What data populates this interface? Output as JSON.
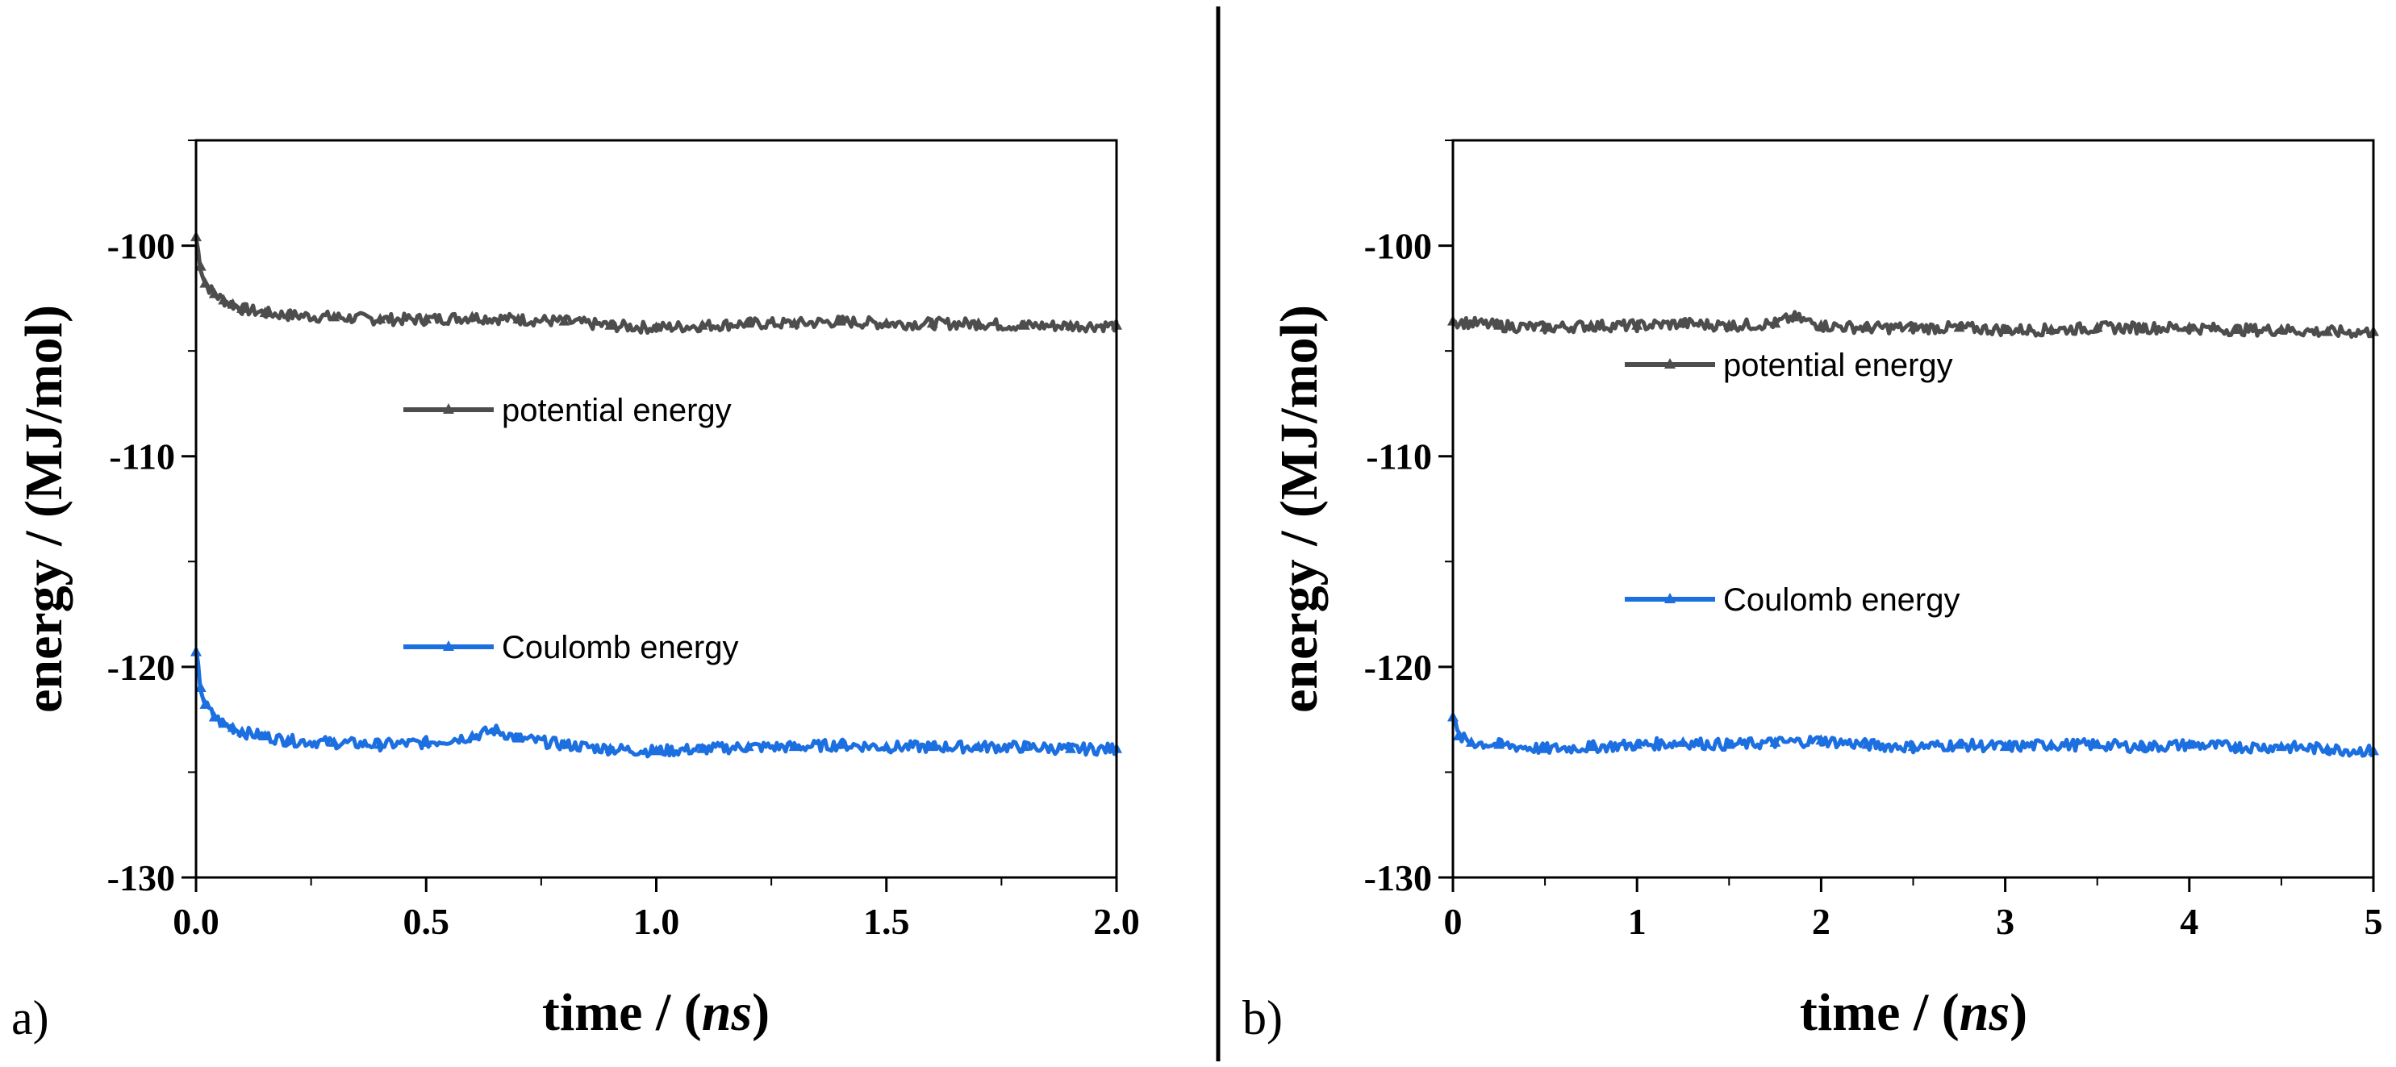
{
  "colors": {
    "potential": "#4d4d4d",
    "coulomb": "#1c6fe0",
    "axis": "#000000"
  },
  "chart_data": [
    {
      "type": "line",
      "panel_label": "a)",
      "xlabel": "time / (ns)",
      "xlabel_main": "time / (",
      "xlabel_italic": "ns",
      "xlabel_end": ")",
      "ylabel": "energy / (MJ/mol)",
      "xlim": [
        0.0,
        2.0
      ],
      "ylim": [
        -130,
        -95
      ],
      "xticks": [
        0.0,
        0.5,
        1.0,
        1.5,
        2.0
      ],
      "xtick_labels": [
        "0.0",
        "0.5",
        "1.0",
        "1.5",
        "2.0"
      ],
      "yticks": [
        -100,
        -110,
        -120,
        -130
      ],
      "ytick_labels": [
        "-100",
        "-110",
        "-120",
        "-130"
      ],
      "legend_position": "center",
      "series": [
        {
          "name": "potential energy",
          "color": "#4d4d4d",
          "x": [
            0.0,
            0.01,
            0.02,
            0.04,
            0.06,
            0.08,
            0.1,
            0.15,
            0.2,
            0.3,
            0.4,
            0.5,
            0.6,
            0.7,
            0.8,
            0.9,
            1.0,
            1.1,
            1.2,
            1.3,
            1.4,
            1.5,
            1.6,
            1.7,
            1.8,
            1.9,
            2.0
          ],
          "y": [
            -99.6,
            -101.0,
            -101.8,
            -102.3,
            -102.6,
            -102.8,
            -103.0,
            -103.2,
            -103.3,
            -103.4,
            -103.5,
            -103.5,
            -103.4,
            -103.5,
            -103.6,
            -103.8,
            -103.9,
            -103.8,
            -103.7,
            -103.7,
            -103.6,
            -103.7,
            -103.7,
            -103.7,
            -103.8,
            -103.8,
            -103.8
          ]
        },
        {
          "name": "Coulomb energy",
          "color": "#1c6fe0",
          "x": [
            0.0,
            0.01,
            0.02,
            0.04,
            0.06,
            0.08,
            0.1,
            0.15,
            0.2,
            0.3,
            0.4,
            0.5,
            0.6,
            0.65,
            0.7,
            0.8,
            0.9,
            1.0,
            1.1,
            1.2,
            1.3,
            1.4,
            1.5,
            1.6,
            1.7,
            1.8,
            1.9,
            2.0
          ],
          "y": [
            -119.3,
            -121.0,
            -121.8,
            -122.4,
            -122.7,
            -122.9,
            -123.1,
            -123.3,
            -123.5,
            -123.6,
            -123.7,
            -123.6,
            -123.3,
            -123.0,
            -123.4,
            -123.7,
            -123.9,
            -124.0,
            -123.9,
            -123.8,
            -123.8,
            -123.7,
            -123.8,
            -123.8,
            -123.8,
            -123.8,
            -123.9,
            -123.9
          ]
        }
      ]
    },
    {
      "type": "line",
      "panel_label": "b)",
      "xlabel": "time / (ns)",
      "xlabel_main": "time / (",
      "xlabel_italic": "ns",
      "xlabel_end": ")",
      "ylabel": "energy / (MJ/mol)",
      "xlim": [
        0,
        5
      ],
      "ylim": [
        -130,
        -95
      ],
      "xticks": [
        0,
        1,
        2,
        3,
        4,
        5
      ],
      "xtick_labels": [
        "0",
        "1",
        "2",
        "3",
        "4",
        "5"
      ],
      "yticks": [
        -100,
        -110,
        -120,
        -130
      ],
      "ytick_labels": [
        "-100",
        "-110",
        "-120",
        "-130"
      ],
      "legend_position": "center",
      "series": [
        {
          "name": "potential energy",
          "color": "#4d4d4d",
          "x": [
            0,
            0.25,
            0.5,
            0.75,
            1.0,
            1.25,
            1.5,
            1.75,
            1.85,
            2.0,
            2.25,
            2.5,
            2.75,
            3.0,
            3.25,
            3.5,
            3.75,
            4.0,
            4.25,
            4.5,
            4.75,
            5.0
          ],
          "y": [
            -103.6,
            -103.8,
            -103.9,
            -103.8,
            -103.8,
            -103.7,
            -103.8,
            -103.7,
            -103.4,
            -103.8,
            -103.9,
            -103.9,
            -103.9,
            -104.0,
            -104.0,
            -103.9,
            -103.9,
            -103.9,
            -104.0,
            -104.0,
            -104.1,
            -104.1
          ]
        },
        {
          "name": "Coulomb energy",
          "color": "#1c6fe0",
          "x": [
            0,
            0.03,
            0.1,
            0.25,
            0.5,
            0.75,
            1.0,
            1.25,
            1.5,
            1.75,
            2.0,
            2.25,
            2.5,
            2.75,
            3.0,
            3.25,
            3.5,
            3.75,
            4.0,
            4.25,
            4.5,
            4.75,
            5.0
          ],
          "y": [
            -122.4,
            -123.3,
            -123.6,
            -123.7,
            -123.9,
            -123.8,
            -123.7,
            -123.6,
            -123.7,
            -123.6,
            -123.5,
            -123.7,
            -123.8,
            -123.7,
            -123.8,
            -123.7,
            -123.7,
            -123.8,
            -123.7,
            -123.8,
            -123.8,
            -123.9,
            -124.0
          ]
        }
      ]
    }
  ]
}
